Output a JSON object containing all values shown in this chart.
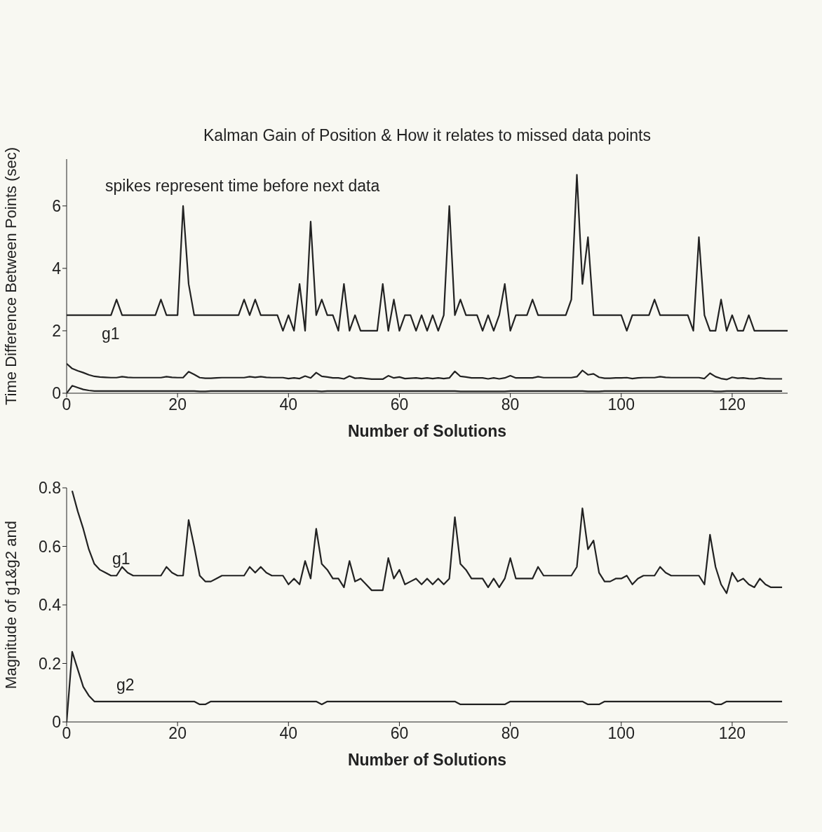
{
  "chart_data": [
    {
      "type": "line",
      "title": "Kalman Gain of Position & How it relates to missed data points",
      "xlabel": "Number of Solutions",
      "ylabel": "Time Difference Between Points (sec)",
      "x": [
        0,
        1,
        2,
        3,
        4,
        5,
        6,
        7,
        8,
        9,
        10,
        11,
        12,
        13,
        14,
        15,
        16,
        17,
        18,
        19,
        20,
        21,
        22,
        23,
        24,
        25,
        26,
        27,
        28,
        29,
        30,
        31,
        32,
        33,
        34,
        35,
        36,
        37,
        38,
        39,
        40,
        41,
        42,
        43,
        44,
        45,
        46,
        47,
        48,
        49,
        50,
        51,
        52,
        53,
        54,
        55,
        56,
        57,
        58,
        59,
        60,
        61,
        62,
        63,
        64,
        65,
        66,
        67,
        68,
        69,
        70,
        71,
        72,
        73,
        74,
        75,
        76,
        77,
        78,
        79,
        80,
        81,
        82,
        83,
        84,
        85,
        86,
        87,
        88,
        89,
        90,
        91,
        92,
        93,
        94,
        95,
        96,
        97,
        98,
        99,
        100,
        101,
        102,
        103,
        104,
        105,
        106,
        107,
        108,
        109,
        110,
        111,
        112,
        113,
        114,
        115,
        116,
        117,
        118,
        119,
        120,
        121,
        122,
        123,
        124,
        125,
        126,
        127,
        128,
        129,
        130
      ],
      "xlim": [
        0,
        130
      ],
      "xticks": [
        0,
        20,
        40,
        60,
        80,
        100,
        120
      ],
      "ylim": [
        0,
        7.5
      ],
      "yticks": [
        0,
        2,
        4,
        6
      ],
      "annotations": [
        "spikes represent time before next data",
        "g1"
      ],
      "series": [
        {
          "color": "#222222",
          "values": [
            2.5,
            2.5,
            2.5,
            2.5,
            2.5,
            2.5,
            2.5,
            2.5,
            2.5,
            3,
            2.5,
            2.5,
            2.5,
            2.5,
            2.5,
            2.5,
            2.5,
            3,
            2.5,
            2.5,
            2.5,
            6,
            3.5,
            2.5,
            2.5,
            2.5,
            2.5,
            2.5,
            2.5,
            2.5,
            2.5,
            2.5,
            3,
            2.5,
            3,
            2.5,
            2.5,
            2.5,
            2.5,
            2,
            2.5,
            2,
            3.5,
            2,
            5.5,
            2.5,
            3,
            2.5,
            2.5,
            2,
            3.5,
            2,
            2.5,
            2,
            2,
            2,
            2,
            3.5,
            2,
            3,
            2,
            2.5,
            2.5,
            2,
            2.5,
            2,
            2.5,
            2,
            2.5,
            6,
            2.5,
            3,
            2.5,
            2.5,
            2.5,
            2,
            2.5,
            2,
            2.5,
            3.5,
            2,
            2.5,
            2.5,
            2.5,
            3,
            2.5,
            2.5,
            2.5,
            2.5,
            2.5,
            2.5,
            3,
            7,
            3.5,
            5,
            2.5,
            2.5,
            2.5,
            2.5,
            2.5,
            2.5,
            2,
            2.5,
            2.5,
            2.5,
            2.5,
            3,
            2.5,
            2.5,
            2.5,
            2.5,
            2.5,
            2.5,
            2,
            5,
            2.5,
            2,
            2,
            3,
            2,
            2.5,
            2,
            2,
            2.5,
            2,
            2,
            2,
            2,
            2,
            2,
            2
          ]
        },
        {
          "color": "#222222",
          "values": [
            0.95,
            0.79,
            0.72,
            0.66,
            0.59,
            0.54,
            0.52,
            0.51,
            0.5,
            0.5,
            0.53,
            0.51,
            0.5,
            0.5,
            0.5,
            0.5,
            0.5,
            0.5,
            0.53,
            0.51,
            0.5,
            0.5,
            0.69,
            0.6,
            0.5,
            0.48,
            0.48,
            0.49,
            0.5,
            0.5,
            0.5,
            0.5,
            0.5,
            0.53,
            0.51,
            0.53,
            0.51,
            0.5,
            0.5,
            0.5,
            0.47,
            0.49,
            0.47,
            0.55,
            0.49,
            0.66,
            0.54,
            0.52,
            0.49,
            0.49,
            0.46,
            0.55,
            0.48,
            0.49,
            0.47,
            0.45,
            0.45,
            0.45,
            0.56,
            0.49,
            0.52,
            0.47,
            0.48,
            0.49,
            0.47,
            0.49,
            0.47,
            0.49,
            0.47,
            0.49,
            0.7,
            0.54,
            0.52,
            0.49,
            0.49,
            0.49,
            0.46,
            0.49,
            0.46,
            0.49,
            0.56,
            0.49,
            0.49,
            0.49,
            0.49,
            0.53,
            0.5,
            0.5,
            0.5,
            0.5,
            0.5,
            0.5,
            0.53,
            0.73,
            0.59,
            0.62,
            0.51,
            0.48,
            0.48,
            0.49,
            0.49,
            0.5,
            0.47,
            0.49,
            0.5,
            0.5,
            0.5,
            0.53,
            0.51,
            0.5,
            0.5,
            0.5,
            0.5,
            0.5,
            0.5,
            0.47,
            0.64,
            0.53,
            0.47,
            0.44,
            0.51,
            0.48,
            0.49,
            0.47,
            0.46,
            0.49,
            0.47,
            0.46,
            0.46,
            0.46,
            null
          ]
        },
        {
          "color": "#222222",
          "values": [
            0,
            0.24,
            0.18,
            0.12,
            0.09,
            0.07,
            0.07,
            0.07,
            0.07,
            0.07,
            0.07,
            0.07,
            0.07,
            0.07,
            0.07,
            0.07,
            0.07,
            0.07,
            0.07,
            0.07,
            0.07,
            0.07,
            0.07,
            0.07,
            0.06,
            0.06,
            0.07,
            0.07,
            0.07,
            0.07,
            0.07,
            0.07,
            0.07,
            0.07,
            0.07,
            0.07,
            0.07,
            0.07,
            0.07,
            0.07,
            0.07,
            0.07,
            0.07,
            0.07,
            0.07,
            0.07,
            0.06,
            0.07,
            0.07,
            0.07,
            0.07,
            0.07,
            0.07,
            0.07,
            0.07,
            0.07,
            0.07,
            0.07,
            0.07,
            0.07,
            0.07,
            0.07,
            0.07,
            0.07,
            0.07,
            0.07,
            0.07,
            0.07,
            0.07,
            0.07,
            0.07,
            0.06,
            0.06,
            0.06,
            0.06,
            0.06,
            0.06,
            0.06,
            0.06,
            0.06,
            0.07,
            0.07,
            0.07,
            0.07,
            0.07,
            0.07,
            0.07,
            0.07,
            0.07,
            0.07,
            0.07,
            0.07,
            0.07,
            0.07,
            0.06,
            0.06,
            0.06,
            0.07,
            0.07,
            0.07,
            0.07,
            0.07,
            0.07,
            0.07,
            0.07,
            0.07,
            0.07,
            0.07,
            0.07,
            0.07,
            0.07,
            0.07,
            0.07,
            0.07,
            0.07,
            0.07,
            0.07,
            0.06,
            0.06,
            0.07,
            0.07,
            0.07,
            0.07,
            0.07,
            0.07,
            0.07,
            0.07,
            0.07,
            0.07,
            0.07,
            null
          ]
        }
      ]
    },
    {
      "type": "line",
      "xlabel": "Number of Solutions",
      "ylabel": "Magnitude of g1&g2 and",
      "x": [
        0,
        1,
        2,
        3,
        4,
        5,
        6,
        7,
        8,
        9,
        10,
        11,
        12,
        13,
        14,
        15,
        16,
        17,
        18,
        19,
        20,
        21,
        22,
        23,
        24,
        25,
        26,
        27,
        28,
        29,
        30,
        31,
        32,
        33,
        34,
        35,
        36,
        37,
        38,
        39,
        40,
        41,
        42,
        43,
        44,
        45,
        46,
        47,
        48,
        49,
        50,
        51,
        52,
        53,
        54,
        55,
        56,
        57,
        58,
        59,
        60,
        61,
        62,
        63,
        64,
        65,
        66,
        67,
        68,
        69,
        70,
        71,
        72,
        73,
        74,
        75,
        76,
        77,
        78,
        79,
        80,
        81,
        82,
        83,
        84,
        85,
        86,
        87,
        88,
        89,
        90,
        91,
        92,
        93,
        94,
        95,
        96,
        97,
        98,
        99,
        100,
        101,
        102,
        103,
        104,
        105,
        106,
        107,
        108,
        109,
        110,
        111,
        112,
        113,
        114,
        115,
        116,
        117,
        118,
        119,
        120,
        121,
        122,
        123,
        124,
        125,
        126,
        127,
        128,
        129
      ],
      "xlim": [
        0,
        130
      ],
      "xticks": [
        0,
        20,
        40,
        60,
        80,
        100,
        120
      ],
      "ylim": [
        0,
        0.8
      ],
      "yticks": [
        0,
        0.2,
        0.4,
        0.6,
        0.8
      ],
      "annotations": [
        "g1",
        "g2"
      ],
      "series": [
        {
          "color": "#222222",
          "values": [
            null,
            0.79,
            0.72,
            0.66,
            0.59,
            0.54,
            0.52,
            0.51,
            0.5,
            0.5,
            0.53,
            0.51,
            0.5,
            0.5,
            0.5,
            0.5,
            0.5,
            0.5,
            0.53,
            0.51,
            0.5,
            0.5,
            0.69,
            0.6,
            0.5,
            0.48,
            0.48,
            0.49,
            0.5,
            0.5,
            0.5,
            0.5,
            0.5,
            0.53,
            0.51,
            0.53,
            0.51,
            0.5,
            0.5,
            0.5,
            0.47,
            0.49,
            0.47,
            0.55,
            0.49,
            0.66,
            0.54,
            0.52,
            0.49,
            0.49,
            0.46,
            0.55,
            0.48,
            0.49,
            0.47,
            0.45,
            0.45,
            0.45,
            0.56,
            0.49,
            0.52,
            0.47,
            0.48,
            0.49,
            0.47,
            0.49,
            0.47,
            0.49,
            0.47,
            0.49,
            0.7,
            0.54,
            0.52,
            0.49,
            0.49,
            0.49,
            0.46,
            0.49,
            0.46,
            0.49,
            0.56,
            0.49,
            0.49,
            0.49,
            0.49,
            0.53,
            0.5,
            0.5,
            0.5,
            0.5,
            0.5,
            0.5,
            0.53,
            0.73,
            0.59,
            0.62,
            0.51,
            0.48,
            0.48,
            0.49,
            0.49,
            0.5,
            0.47,
            0.49,
            0.5,
            0.5,
            0.5,
            0.53,
            0.51,
            0.5,
            0.5,
            0.5,
            0.5,
            0.5,
            0.5,
            0.47,
            0.64,
            0.53,
            0.47,
            0.44,
            0.51,
            0.48,
            0.49,
            0.47,
            0.46,
            0.49,
            0.47,
            0.46,
            0.46,
            0.46
          ]
        },
        {
          "color": "#222222",
          "values": [
            0,
            0.24,
            0.18,
            0.12,
            0.09,
            0.07,
            0.07,
            0.07,
            0.07,
            0.07,
            0.07,
            0.07,
            0.07,
            0.07,
            0.07,
            0.07,
            0.07,
            0.07,
            0.07,
            0.07,
            0.07,
            0.07,
            0.07,
            0.07,
            0.06,
            0.06,
            0.07,
            0.07,
            0.07,
            0.07,
            0.07,
            0.07,
            0.07,
            0.07,
            0.07,
            0.07,
            0.07,
            0.07,
            0.07,
            0.07,
            0.07,
            0.07,
            0.07,
            0.07,
            0.07,
            0.07,
            0.06,
            0.07,
            0.07,
            0.07,
            0.07,
            0.07,
            0.07,
            0.07,
            0.07,
            0.07,
            0.07,
            0.07,
            0.07,
            0.07,
            0.07,
            0.07,
            0.07,
            0.07,
            0.07,
            0.07,
            0.07,
            0.07,
            0.07,
            0.07,
            0.07,
            0.06,
            0.06,
            0.06,
            0.06,
            0.06,
            0.06,
            0.06,
            0.06,
            0.06,
            0.07,
            0.07,
            0.07,
            0.07,
            0.07,
            0.07,
            0.07,
            0.07,
            0.07,
            0.07,
            0.07,
            0.07,
            0.07,
            0.07,
            0.06,
            0.06,
            0.06,
            0.07,
            0.07,
            0.07,
            0.07,
            0.07,
            0.07,
            0.07,
            0.07,
            0.07,
            0.07,
            0.07,
            0.07,
            0.07,
            0.07,
            0.07,
            0.07,
            0.07,
            0.07,
            0.07,
            0.07,
            0.06,
            0.06,
            0.07,
            0.07,
            0.07,
            0.07,
            0.07,
            0.07,
            0.07,
            0.07,
            0.07,
            0.07,
            0.07
          ]
        }
      ]
    }
  ]
}
